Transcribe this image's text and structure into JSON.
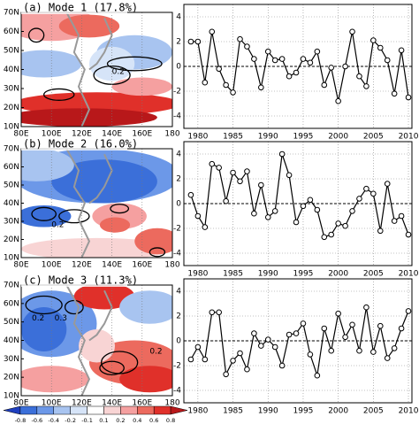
{
  "chart_data": [
    {
      "type": "map",
      "title": "(a) Mode 1 (17.8%)",
      "xlim": [
        80,
        180
      ],
      "ylim": [
        10,
        70
      ],
      "xticks": [
        {
          "value": 80,
          "label": "80E"
        },
        {
          "value": 100,
          "label": "100E"
        },
        {
          "value": 120,
          "label": "120E"
        },
        {
          "value": 140,
          "label": "140E"
        },
        {
          "value": 160,
          "label": "160E"
        },
        {
          "value": 180,
          "label": "180"
        }
      ],
      "yticks": [
        {
          "value": 10,
          "label": "10N"
        },
        {
          "value": 20,
          "label": "20N"
        },
        {
          "value": 30,
          "label": "30N"
        },
        {
          "value": 40,
          "label": "40N"
        },
        {
          "value": 50,
          "label": "50N"
        },
        {
          "value": 60,
          "label": "60N"
        },
        {
          "value": 70,
          "label": "70N"
        }
      ],
      "annotations": [
        "0.2"
      ]
    },
    {
      "type": "map",
      "title": "(b) Mode 2 (16.0%)",
      "xlim": [
        80,
        180
      ],
      "ylim": [
        10,
        70
      ],
      "xticks": [
        {
          "value": 80,
          "label": "80E"
        },
        {
          "value": 100,
          "label": "100E"
        },
        {
          "value": 120,
          "label": "120E"
        },
        {
          "value": 140,
          "label": "140E"
        },
        {
          "value": 160,
          "label": "160E"
        },
        {
          "value": 180,
          "label": "180"
        }
      ],
      "yticks": [
        {
          "value": 10,
          "label": "10N"
        },
        {
          "value": 20,
          "label": "20N"
        },
        {
          "value": 30,
          "label": "30N"
        },
        {
          "value": 40,
          "label": "40N"
        },
        {
          "value": 50,
          "label": "50N"
        },
        {
          "value": 60,
          "label": "60N"
        },
        {
          "value": 70,
          "label": "70N"
        }
      ],
      "annotations": [
        "0.2"
      ]
    },
    {
      "type": "map",
      "title": "(c) Mode 3 (11.3%)",
      "xlim": [
        80,
        180
      ],
      "ylim": [
        10,
        70
      ],
      "xticks": [
        {
          "value": 80,
          "label": "80E"
        },
        {
          "value": 100,
          "label": "100E"
        },
        {
          "value": 120,
          "label": "120E"
        },
        {
          "value": 140,
          "label": "140E"
        },
        {
          "value": 160,
          "label": "160E"
        },
        {
          "value": 180,
          "label": "180"
        }
      ],
      "yticks": [
        {
          "value": 10,
          "label": "10N"
        },
        {
          "value": 20,
          "label": "20N"
        },
        {
          "value": 30,
          "label": "30N"
        },
        {
          "value": 40,
          "label": "40N"
        },
        {
          "value": 50,
          "label": "50N"
        },
        {
          "value": 60,
          "label": "60N"
        },
        {
          "value": 70,
          "label": "70N"
        }
      ],
      "annotations": [
        "0.2",
        "0.3",
        "0.2"
      ]
    },
    {
      "type": "line",
      "color": "#000000",
      "grid": true,
      "hline": 0,
      "xlim": [
        1978,
        2010.5
      ],
      "ylim": [
        -5,
        5
      ],
      "xticks": [
        1980,
        1985,
        1990,
        1995,
        2000,
        2005,
        2010
      ],
      "yticks": [
        -4,
        -2,
        0,
        2,
        4
      ],
      "x": [
        1979,
        1980,
        1981,
        1982,
        1983,
        1984,
        1985,
        1986,
        1987,
        1988,
        1989,
        1990,
        1991,
        1992,
        1993,
        1994,
        1995,
        1996,
        1997,
        1998,
        1999,
        2000,
        2001,
        2002,
        2003,
        2004,
        2005,
        2006,
        2007,
        2008,
        2009,
        2010
      ],
      "values": [
        2.0,
        2.0,
        -1.3,
        2.8,
        -0.2,
        -1.5,
        -2.1,
        2.2,
        1.6,
        0.6,
        -1.7,
        1.2,
        0.5,
        0.6,
        -0.8,
        -0.5,
        0.6,
        0.3,
        1.2,
        -1.5,
        -0.1,
        -2.8,
        0.0,
        2.8,
        -0.8,
        -1.6,
        2.1,
        1.5,
        0.5,
        -2.2,
        1.3,
        -2.5
      ]
    },
    {
      "type": "line",
      "color": "#000000",
      "grid": true,
      "hline": 0,
      "xlim": [
        1978,
        2010.5
      ],
      "ylim": [
        -5,
        5
      ],
      "xticks": [
        1980,
        1985,
        1990,
        1995,
        2000,
        2005,
        2010
      ],
      "yticks": [
        -4,
        -2,
        0,
        2,
        4
      ],
      "x": [
        1979,
        1980,
        1981,
        1982,
        1983,
        1984,
        1985,
        1986,
        1987,
        1988,
        1989,
        1990,
        1991,
        1992,
        1993,
        1994,
        1995,
        1996,
        1997,
        1998,
        1999,
        2000,
        2001,
        2002,
        2003,
        2004,
        2005,
        2006,
        2007,
        2008,
        2009,
        2010
      ],
      "values": [
        0.7,
        -1.0,
        -1.9,
        3.2,
        2.9,
        0.2,
        2.5,
        1.8,
        2.6,
        -0.8,
        1.5,
        -1.1,
        -0.6,
        4.0,
        2.3,
        -1.5,
        -0.2,
        0.3,
        -0.5,
        -2.7,
        -2.5,
        -1.6,
        -1.8,
        -0.6,
        0.4,
        1.2,
        0.8,
        -2.2,
        1.6,
        -1.4,
        -1.0,
        -2.5
      ]
    },
    {
      "type": "line",
      "color": "#000000",
      "grid": true,
      "hline": 0,
      "xlim": [
        1978,
        2010.5
      ],
      "ylim": [
        -5,
        5
      ],
      "xticks": [
        1980,
        1985,
        1990,
        1995,
        2000,
        2005,
        2010
      ],
      "yticks": [
        -4,
        -2,
        0,
        2,
        4
      ],
      "x": [
        1979,
        1980,
        1981,
        1982,
        1983,
        1984,
        1985,
        1986,
        1987,
        1988,
        1989,
        1990,
        1991,
        1992,
        1993,
        1994,
        1995,
        1996,
        1997,
        1998,
        1999,
        2000,
        2001,
        2002,
        2003,
        2004,
        2005,
        2006,
        2007,
        2008,
        2009,
        2010
      ],
      "values": [
        -1.5,
        -0.5,
        -1.5,
        2.3,
        2.3,
        -2.7,
        -1.6,
        -1.0,
        -2.3,
        0.6,
        -0.4,
        0.1,
        -0.5,
        -2.0,
        0.5,
        0.6,
        1.4,
        -1.1,
        -2.8,
        1.0,
        -0.8,
        2.2,
        0.3,
        1.3,
        -0.8,
        2.7,
        -0.9,
        1.2,
        -1.4,
        -0.6,
        1.0,
        2.4
      ]
    },
    {
      "type": "colorbar",
      "ticks": [
        -0.8,
        -0.6,
        -0.4,
        -0.2,
        -0.1,
        0.1,
        0.2,
        0.4,
        0.6,
        0.8
      ],
      "colors": [
        "#1f3fbf",
        "#3b6fd9",
        "#6c98e8",
        "#a8c4f0",
        "#d6e4f8",
        "#ffffff",
        "#f8d4d4",
        "#f5a0a0",
        "#ec6a5e",
        "#e0302a",
        "#b8181a"
      ]
    }
  ]
}
